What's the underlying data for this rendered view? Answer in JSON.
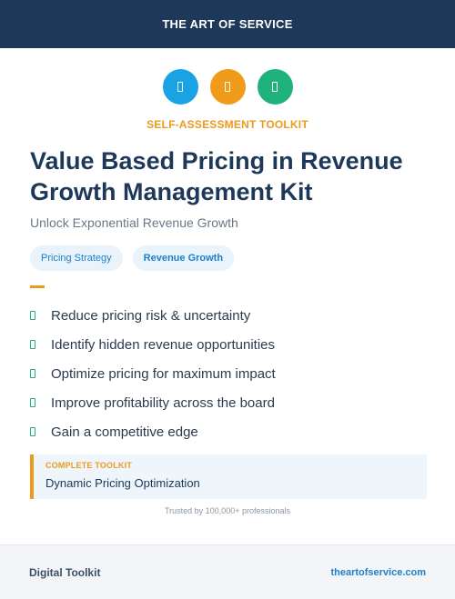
{
  "header": {
    "title": "THE ART OF SERVICE"
  },
  "icons": [
    {
      "name": "document-icon",
      "color": "#1aa3e4"
    },
    {
      "name": "document-icon",
      "color": "#f19b1a"
    },
    {
      "name": "document-icon",
      "color": "#1fb27c"
    }
  ],
  "kicker": "SELF-ASSESSMENT TOOLKIT",
  "title": "Value Based Pricing in Revenue Growth Management Kit",
  "subtitle": "Unlock Exponential Revenue Growth",
  "tags": [
    "Pricing Strategy",
    "Revenue Growth"
  ],
  "benefits": [
    "Reduce pricing risk & uncertainty",
    "Identify hidden revenue opportunities",
    "Optimize pricing for maximum impact",
    "Improve profitability across the board",
    "Gain a competitive edge"
  ],
  "toolkit": {
    "label": "COMPLETE TOOLKIT",
    "name": "Dynamic Pricing Optimization"
  },
  "trusted": "Trusted by 100,000+ professionals",
  "footer": {
    "left": "Digital Toolkit",
    "right": "theartofservice.com"
  },
  "colors": {
    "navy": "#1e3859",
    "accent_orange": "#ee9a1d",
    "accent_blue": "#1e80c8",
    "accent_green": "#20b07e"
  }
}
